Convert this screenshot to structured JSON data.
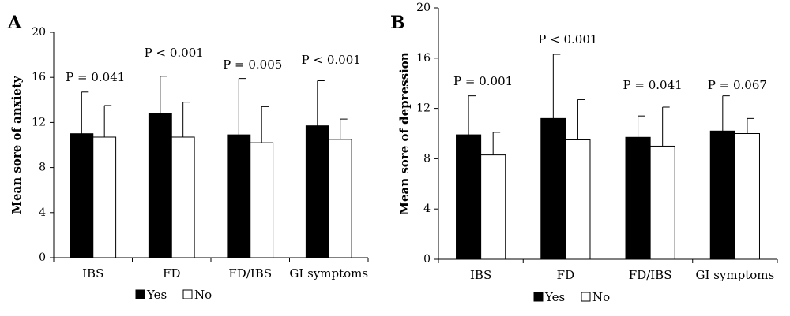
{
  "chart_data": [
    {
      "type": "bar",
      "panel": "A",
      "ylabel": "Mean sore of anxiety",
      "ylim": [
        0,
        20
      ],
      "yticks": [
        0,
        4,
        8,
        12,
        16,
        20
      ],
      "categories": [
        "IBS",
        "FD",
        "FD/IBS",
        "GI symptoms"
      ],
      "series": [
        {
          "name": "Yes",
          "color": "#000000",
          "values": [
            11.0,
            12.8,
            10.9,
            11.7
          ],
          "errors": [
            3.7,
            3.3,
            5.0,
            4.0
          ]
        },
        {
          "name": "No",
          "color": "#ffffff",
          "values": [
            10.7,
            10.7,
            10.2,
            10.5
          ],
          "errors": [
            2.8,
            3.1,
            3.2,
            1.8
          ]
        }
      ],
      "annotations": [
        "P = 0.041",
        "P < 0.001",
        "P = 0.005",
        "P < 0.001"
      ],
      "legend_position": "bottom"
    },
    {
      "type": "bar",
      "panel": "B",
      "ylabel": "Mean sore of depression",
      "ylim": [
        0,
        20
      ],
      "yticks": [
        0,
        4,
        8,
        12,
        16,
        20
      ],
      "categories": [
        "IBS",
        "FD",
        "FD/IBS",
        "GI symptoms"
      ],
      "series": [
        {
          "name": "Yes",
          "color": "#000000",
          "values": [
            9.9,
            11.2,
            9.7,
            10.2
          ],
          "errors": [
            3.1,
            5.1,
            1.7,
            2.8
          ]
        },
        {
          "name": "No",
          "color": "#ffffff",
          "values": [
            8.3,
            9.5,
            9.0,
            10.0
          ],
          "errors": [
            1.8,
            3.2,
            3.1,
            1.2
          ]
        }
      ],
      "annotations": [
        "P = 0.001",
        "P < 0.001",
        "P = 0.041",
        "P = 0.067"
      ],
      "legend_position": "bottom"
    }
  ]
}
